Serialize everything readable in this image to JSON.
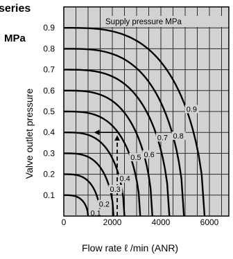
{
  "chart_data": {
    "type": "line",
    "header_fragment": "series",
    "legend_title": "Supply pressure  MPa",
    "ylabel_unit": "MPa",
    "xlabel": "Flow rate  ℓ /min (ANR)",
    "ylabel": "Valve outlet pressure",
    "xlim": [
      0,
      6800
    ],
    "ylim": [
      0,
      1.0
    ],
    "x_ticks": [
      0,
      2000,
      4000,
      6000
    ],
    "x_tick_labels": [
      "0",
      "2000",
      "4000",
      "6000"
    ],
    "y_ticks": [
      0.1,
      0.2,
      0.3,
      0.4,
      0.5,
      0.6,
      0.7,
      0.8,
      0.9
    ],
    "y_tick_labels": [
      "0.1",
      "0.2",
      "0.3",
      "0.4",
      "0.5",
      "0.6",
      "0.7",
      "0.8",
      "0.9"
    ],
    "grid": true,
    "series": [
      {
        "name": "0.1",
        "set_pressure": 0.1,
        "max_flow": 1000,
        "label_x": 1100
      },
      {
        "name": "0.2",
        "set_pressure": 0.2,
        "max_flow": 1500,
        "label_x": 1450
      },
      {
        "name": "0.3",
        "set_pressure": 0.3,
        "max_flow": 2050,
        "label_x": 1900
      },
      {
        "name": "0.4",
        "set_pressure": 0.4,
        "max_flow": 2500,
        "label_x": 2300
      },
      {
        "name": "0.5",
        "set_pressure": 0.5,
        "max_flow": 3150,
        "label_x": 2750
      },
      {
        "name": "0.6",
        "set_pressure": 0.6,
        "max_flow": 3650,
        "label_x": 3300
      },
      {
        "name": "0.7",
        "set_pressure": 0.7,
        "max_flow": 4350,
        "label_x": 3850
      },
      {
        "name": "0.8",
        "set_pressure": 0.8,
        "max_flow": 4950,
        "label_x": 4500
      },
      {
        "name": "0.9",
        "set_pressure": 0.9,
        "max_flow": 5800,
        "label_x": 5050
      }
    ],
    "annotation": {
      "type": "example-path",
      "dashed_x": 2200,
      "dashed_from_y": 0,
      "dashed_to_y": 0.4,
      "arrow_from_x": 2200,
      "arrow_to_x": 1300,
      "arrow_y": 0.4
    },
    "colors": {
      "grid": "#2a2a2a",
      "plot_bg": "#d2d2d2",
      "curve": "#000000"
    }
  }
}
